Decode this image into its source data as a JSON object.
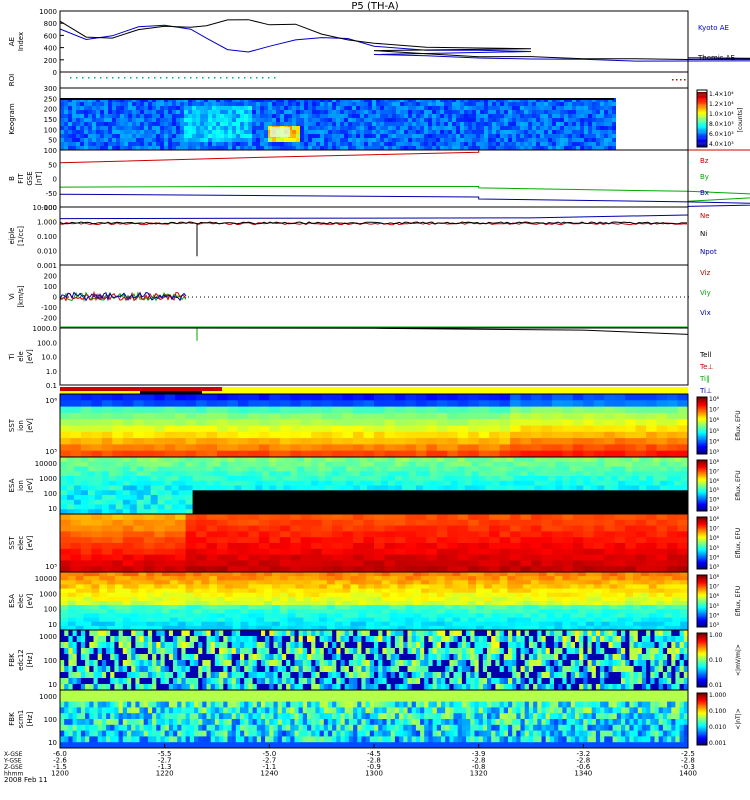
{
  "title": "P5 (TH-A)",
  "date_label": "2008 Feb 11",
  "chart_data": [
    {
      "type": "line",
      "panel": "ae",
      "ylabel": "AE Index",
      "ylim": [
        0,
        1000
      ],
      "yticks": [
        0,
        200,
        400,
        600,
        800,
        1000
      ],
      "x": [
        1200,
        1205,
        1210,
        1215,
        1220,
        1225,
        1228,
        1232,
        1236,
        1240,
        1245,
        1250,
        1255,
        1260,
        1270,
        1280,
        1290,
        1300,
        1310,
        1320,
        1330,
        1340,
        1350,
        1360,
        1370,
        1380,
        1390,
        1400
      ],
      "series": [
        {
          "name": "Kyoto AE",
          "color": "#0000cc",
          "values": [
            720,
            520,
            600,
            750,
            760,
            700,
            560,
            360,
            320,
            420,
            520,
            560,
            540,
            430,
            360,
            350,
            330,
            300,
            260,
            230,
            200,
            200,
            190,
            180,
            170,
            180,
            210,
            230
          ]
        },
        {
          "name": "Themis AE",
          "color": "#000000",
          "values": [
            820,
            560,
            560,
            700,
            740,
            740,
            770,
            860,
            860,
            780,
            770,
            620,
            520,
            460,
            420,
            400,
            380,
            350,
            300,
            260,
            240,
            230,
            220,
            210,
            210,
            210,
            200,
            220
          ]
        }
      ]
    },
    {
      "type": "heatmap",
      "panel": "roi",
      "ylabel": "ROI"
    },
    {
      "type": "heatmap",
      "panel": "keogram",
      "ylabel": "Keogram",
      "ylim": [
        0,
        300
      ],
      "yticks": [
        50,
        100,
        150,
        200,
        250,
        300
      ],
      "colorbar": {
        "label": "[counts]",
        "ticks": [
          "4.0×10³",
          "6.0×10³",
          "8.0×10³",
          "1.0×10⁴",
          "1.2×10⁴",
          "1.4×10⁴"
        ]
      }
    },
    {
      "type": "line",
      "panel": "bfield",
      "ylabel": "B FIT GSE [nT]",
      "ylim": [
        -100,
        100
      ],
      "yticks": [
        -100,
        -50,
        0,
        50,
        100
      ],
      "x": [
        1200,
        1240,
        1280,
        1320,
        1360,
        1380,
        1400
      ],
      "series": [
        {
          "name": "Bz",
          "color": "#cc0000",
          "values": [
            55,
            75,
            92,
            100,
            100,
            100,
            100
          ]
        },
        {
          "name": "By",
          "color": "#00aa00",
          "values": [
            -30,
            -28,
            -28,
            -33,
            -45,
            -60,
            -80
          ]
        },
        {
          "name": "Bx",
          "color": "#0000aa",
          "values": [
            -55,
            -60,
            -65,
            -72,
            -82,
            -90,
            -98
          ]
        }
      ]
    },
    {
      "type": "line",
      "panel": "density",
      "ylabel": "eiple [1/cc]",
      "scale": "log",
      "ylim": [
        0.001,
        10
      ],
      "yticks": [
        "0.001",
        "0.010",
        "0.100",
        "1.000",
        "10.000"
      ],
      "series": [
        {
          "name": "Ne",
          "color": "#cc0000"
        },
        {
          "name": "Ni",
          "color": "#000000"
        },
        {
          "name": "Npot",
          "color": "#0000aa"
        }
      ]
    },
    {
      "type": "line",
      "panel": "velocity",
      "ylabel": "Vi [km/s]",
      "ylim": [
        -300,
        300
      ],
      "yticks": [
        -200,
        -100,
        0,
        100,
        200
      ],
      "series": [
        {
          "name": "Viz",
          "color": "#cc0000"
        },
        {
          "name": "Viy",
          "color": "#00aa00"
        },
        {
          "name": "Vix",
          "color": "#0000aa"
        }
      ]
    },
    {
      "type": "line",
      "panel": "temperature",
      "ylabel": "Ti ele [eV]",
      "scale": "log",
      "ylim": [
        0.1,
        1000
      ],
      "yticks": [
        "0.1",
        "1.0",
        "10.0",
        "100.0",
        "1000.0"
      ],
      "series": [
        {
          "name": "Tell",
          "color": "#000000"
        },
        {
          "name": "Te⊥",
          "color": "#cc0000"
        },
        {
          "name": "Ti‖",
          "color": "#00aa00"
        },
        {
          "name": "Ti⊥",
          "color": "#0000aa"
        }
      ]
    },
    {
      "type": "heatmap",
      "panel": "sst_ion",
      "ylabel": "SST ion [eV]",
      "yticks": [
        "10⁵",
        "10⁶"
      ],
      "colorbar": {
        "label": "Eflux, EFU",
        "ticks": [
          "10³",
          "10⁴",
          "10⁵",
          "10⁶",
          "10⁷",
          "10⁸"
        ]
      }
    },
    {
      "type": "heatmap",
      "panel": "esa_ion",
      "ylabel": "ESA ion [eV]",
      "yticks": [
        "10",
        "100",
        "1000",
        "10000"
      ],
      "colorbar": {
        "label": "Eflux, EFU",
        "ticks": [
          "10³",
          "10⁴",
          "10⁵",
          "10⁶",
          "10⁷",
          "10⁸"
        ]
      }
    },
    {
      "type": "heatmap",
      "panel": "sst_ele",
      "ylabel": "SST elec [eV]",
      "yticks": [
        "10⁵"
      ],
      "colorbar": {
        "label": "Eflux, EFU",
        "ticks": [
          "10³",
          "10⁴",
          "10⁵",
          "10⁶",
          "10⁷",
          "10⁸"
        ]
      }
    },
    {
      "type": "heatmap",
      "panel": "esa_ele",
      "ylabel": "ESA elec [eV]",
      "yticks": [
        "10",
        "100",
        "1000",
        "10000"
      ],
      "colorbar": {
        "label": "Eflux, EFU",
        "ticks": [
          "10³",
          "10⁴",
          "10⁵",
          "10⁶",
          "10⁷",
          "10⁸"
        ]
      }
    },
    {
      "type": "heatmap",
      "panel": "fbk_e",
      "ylabel": "FBK edc12 [Hz]",
      "yticks": [
        "10",
        "100",
        "1000"
      ],
      "colorbar": {
        "label": "<|mV/m|>",
        "ticks": [
          "0.01",
          "0.10",
          "1.00"
        ]
      }
    },
    {
      "type": "heatmap",
      "panel": "fbk_b",
      "ylabel": "FBK scm1 [Hz]",
      "yticks": [
        "10",
        "100",
        "1000"
      ],
      "colorbar": {
        "label": "<|nT|>",
        "ticks": [
          "0.001",
          "0.010",
          "0.100",
          "1.000"
        ]
      }
    }
  ],
  "x_axis": {
    "row_labels": [
      "X-GSE",
      "Y-GSE",
      "Z-GSE",
      "hhmm"
    ],
    "ticks": [
      {
        "x": 1200,
        "rows": [
          "-6.0",
          "-2.6",
          "-1.5",
          "1200"
        ]
      },
      {
        "x": 1220,
        "rows": [
          "-5.5",
          "-2.7",
          "-1.3",
          "1220"
        ]
      },
      {
        "x": 1240,
        "rows": [
          "-5.0",
          "-2.7",
          "-1.1",
          "1240"
        ]
      },
      {
        "x": 1300,
        "rows": [
          "-4.5",
          "-2.8",
          "-0.9",
          "1300"
        ]
      },
      {
        "x": 1320,
        "rows": [
          "-3.9",
          "-2.8",
          "-0.8",
          "1320"
        ]
      },
      {
        "x": 1340,
        "rows": [
          "-3.2",
          "-2.8",
          "-0.6",
          "1340"
        ]
      },
      {
        "x": 1400,
        "rows": [
          "-2.5",
          "-2.8",
          "-0.3",
          "1400"
        ]
      }
    ]
  }
}
